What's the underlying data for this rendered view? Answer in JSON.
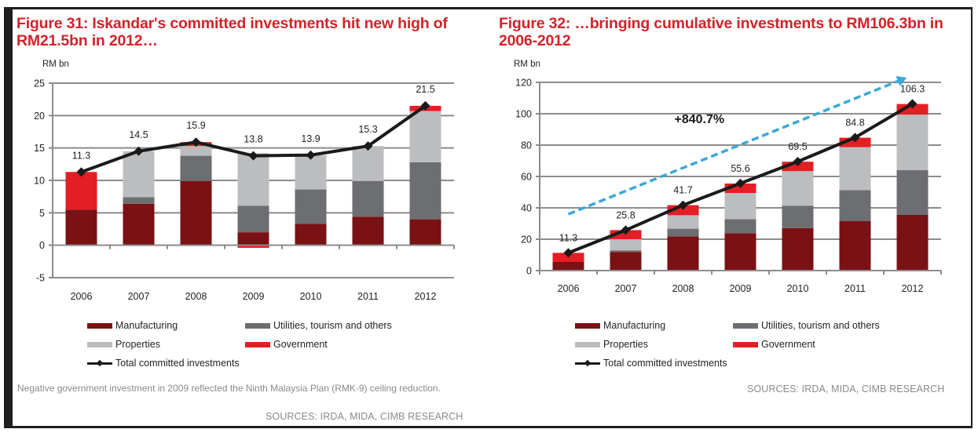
{
  "colors": {
    "manufacturing": "#7a1114",
    "utilities": "#6d6e71",
    "properties": "#bcbdbf",
    "government": "#e31e24",
    "total_line": "#1a1a1a",
    "grid": "#8c8c8c",
    "growth_arrow": "#3aa8d8",
    "title": "#d2232a"
  },
  "legend": {
    "manufacturing": "Manufacturing",
    "utilities": "Utilities, tourism and others",
    "properties": "Properties",
    "government": "Government",
    "total": "Total committed investments"
  },
  "chart_data": [
    {
      "id": "figure-31",
      "type": "bar",
      "stacked": true,
      "title": "Figure 31: Iskandar's committed investments hit new high of RM21.5bn in 2012…",
      "ylabel": "RM bn",
      "xlabel": "",
      "ylim": [
        -5,
        25
      ],
      "yticks": [
        25,
        20,
        15,
        10,
        5,
        0,
        -5
      ],
      "grid": true,
      "legend_position": "bottom",
      "categories": [
        "2006",
        "2007",
        "2008",
        "2009",
        "2010",
        "2011",
        "2012"
      ],
      "series": [
        {
          "name": "Manufacturing",
          "key": "manufacturing",
          "values": [
            5.5,
            6.4,
            9.9,
            2.0,
            3.3,
            4.4,
            4.0
          ]
        },
        {
          "name": "Utilities, tourism and others",
          "key": "utilities",
          "values": [
            0,
            1.0,
            3.9,
            4.1,
            5.3,
            5.5,
            8.8
          ]
        },
        {
          "name": "Properties",
          "key": "properties",
          "values": [
            0,
            7.1,
            1.5,
            8.1,
            5.3,
            5.4,
            7.9
          ]
        },
        {
          "name": "Government",
          "key": "government",
          "values": [
            5.8,
            0,
            0.6,
            -0.4,
            0,
            0,
            0.8
          ]
        }
      ],
      "line": {
        "name": "Total committed investments",
        "values": [
          11.3,
          14.5,
          15.9,
          13.8,
          13.9,
          15.3,
          21.5
        ],
        "labels": [
          "11.3",
          "14.5",
          "15.9",
          "13.8",
          "13.9",
          "15.3",
          "21.5"
        ]
      },
      "note": "Negative government investment in 2009 reflected the Ninth Malaysia Plan (RMK-9) ceiling reduction.",
      "source": "SOURCES: IRDA, MIDA, CIMB RESEARCH"
    },
    {
      "id": "figure-32",
      "type": "bar",
      "stacked": true,
      "title": "Figure 32: …bringing cumulative investments to RM106.3bn in 2006-2012",
      "ylabel": "RM bn",
      "xlabel": "",
      "ylim": [
        0,
        120
      ],
      "yticks": [
        120,
        100,
        80,
        60,
        40,
        20,
        0
      ],
      "grid": true,
      "legend_position": "bottom",
      "categories": [
        "2006",
        "2007",
        "2008",
        "2009",
        "2010",
        "2011",
        "2012"
      ],
      "series": [
        {
          "name": "Manufacturing",
          "key": "manufacturing",
          "values": [
            5.5,
            11.9,
            21.8,
            23.8,
            27.1,
            31.5,
            35.5
          ]
        },
        {
          "name": "Utilities, tourism and others",
          "key": "utilities",
          "values": [
            0,
            1.0,
            4.9,
            9.0,
            14.3,
            19.8,
            28.6
          ]
        },
        {
          "name": "Properties",
          "key": "properties",
          "values": [
            0,
            7.1,
            8.6,
            16.7,
            22.0,
            27.4,
            35.3
          ]
        },
        {
          "name": "Government",
          "key": "government",
          "values": [
            5.8,
            5.8,
            6.4,
            6.0,
            6.0,
            6.0,
            6.8
          ]
        }
      ],
      "line": {
        "name": "Total committed investments",
        "values": [
          11.3,
          25.8,
          41.7,
          55.6,
          69.5,
          84.8,
          106.3
        ],
        "labels": [
          "11.3",
          "25.8",
          "41.7",
          "55.6",
          "69.5",
          "84.8",
          "106.3"
        ]
      },
      "annotation": {
        "text": "+840.7%",
        "arrow_from": {
          "x": "2006",
          "y": 36
        },
        "arrow_to": {
          "x": "2011.9",
          "y": 123
        }
      },
      "source": "SOURCES: IRDA, MIDA, CIMB RESEARCH"
    }
  ]
}
